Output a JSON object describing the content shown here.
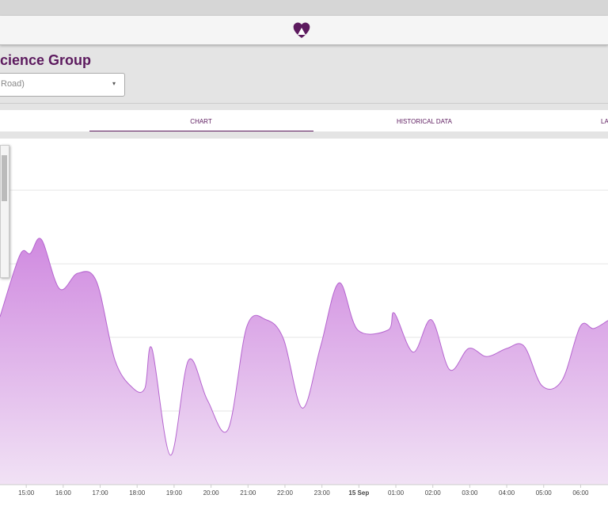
{
  "page": {
    "title": "cience Group",
    "selector": "Road)",
    "tabs": [
      "CHART",
      "HISTORICAL DATA",
      "LA"
    ]
  },
  "chart_data": {
    "type": "area",
    "color": "#b565cf",
    "grid": true,
    "x": [
      14.29,
      14.83,
      15.11,
      15.41,
      15.9,
      16.39,
      16.9,
      17.4,
      17.89,
      18.21,
      18.4,
      18.9,
      19.39,
      19.9,
      20.46,
      20.97,
      21.49,
      21.96,
      22.47,
      22.96,
      23.46,
      23.97,
      24.79,
      24.96,
      25.47,
      25.96,
      26.46,
      26.97,
      27.46,
      28.0,
      28.47,
      28.96,
      29.5,
      29.99,
      30.35,
      30.74
    ],
    "values": [
      2.28,
      3.12,
      3.14,
      3.33,
      2.66,
      2.87,
      2.76,
      1.69,
      1.31,
      1.31,
      1.85,
      0.4,
      1.69,
      1.15,
      0.75,
      2.15,
      2.24,
      1.98,
      1.04,
      1.87,
      2.74,
      2.1,
      2.1,
      2.33,
      1.8,
      2.24,
      1.56,
      1.85,
      1.74,
      1.85,
      1.88,
      1.34,
      1.42,
      2.15,
      2.12,
      2.23
    ],
    "xlim": [
      14.29,
      30.74
    ],
    "ylim": [
      0,
      4.7
    ],
    "yticks": [
      0,
      1,
      2,
      3,
      4
    ],
    "xticks": [
      {
        "value": 15,
        "label": "15:00"
      },
      {
        "value": 16,
        "label": "16:00"
      },
      {
        "value": 17,
        "label": "17:00"
      },
      {
        "value": 18,
        "label": "18:00"
      },
      {
        "value": 19,
        "label": "19:00"
      },
      {
        "value": 20,
        "label": "20:00"
      },
      {
        "value": 21,
        "label": "21:00"
      },
      {
        "value": 22,
        "label": "22:00"
      },
      {
        "value": 23,
        "label": "23:00"
      },
      {
        "value": 24,
        "label": "15 Sep"
      },
      {
        "value": 25,
        "label": "01:00"
      },
      {
        "value": 26,
        "label": "02:00"
      },
      {
        "value": 27,
        "label": "03:00"
      },
      {
        "value": 28,
        "label": "04:00"
      },
      {
        "value": 29,
        "label": "05:00"
      },
      {
        "value": 30,
        "label": "06:00"
      }
    ]
  }
}
